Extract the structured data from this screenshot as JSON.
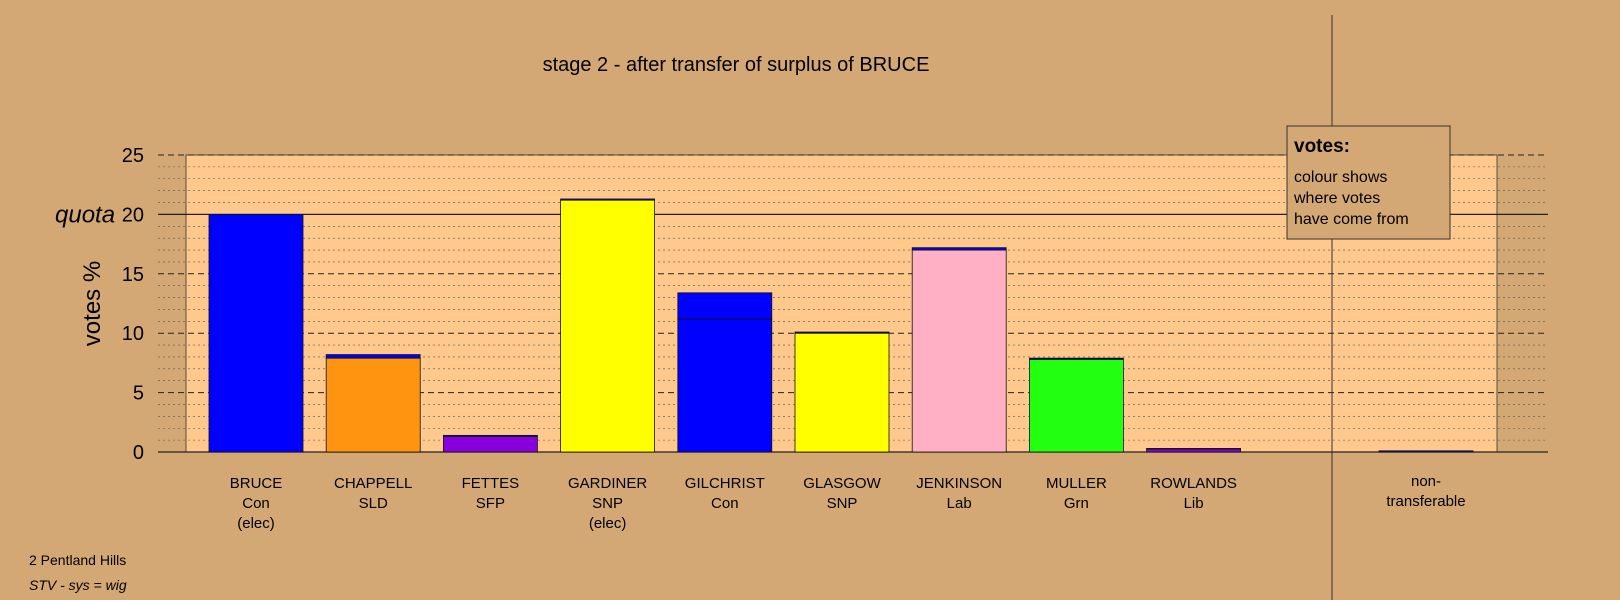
{
  "chart_data": {
    "type": "bar",
    "title": "stage 2 - after transfer of surplus of BRUCE",
    "ylabel": "votes %",
    "ylim": [
      0,
      25
    ],
    "yticks": [
      0,
      5,
      10,
      15,
      20,
      25
    ],
    "quota": {
      "label": "quota",
      "value": 20
    },
    "grid": true,
    "legend": {
      "title": "votes:",
      "lines": [
        "colour shows",
        "where votes",
        "have come from"
      ],
      "position": "top-right"
    },
    "candidates": [
      {
        "name": "BRUCE",
        "party": "Con",
        "status": "(elec)",
        "segments": [
          {
            "value": 20.0,
            "color": "#0000ff"
          }
        ]
      },
      {
        "name": "CHAPPELL",
        "party": "SLD",
        "status": "",
        "segments": [
          {
            "value": 7.9,
            "color": "#ff9410"
          },
          {
            "value": 0.3,
            "color": "#0000ff"
          }
        ]
      },
      {
        "name": "FETTES",
        "party": "SFP",
        "status": "",
        "segments": [
          {
            "value": 1.3,
            "color": "#8800dd"
          },
          {
            "value": 0.1,
            "color": "#0000ff"
          }
        ]
      },
      {
        "name": "GARDINER",
        "party": "SNP",
        "status": "(elec)",
        "segments": [
          {
            "value": 21.2,
            "color": "#ffff00"
          },
          {
            "value": 0.1,
            "color": "#0000ff"
          }
        ]
      },
      {
        "name": "GILCHRIST",
        "party": "Con",
        "status": "",
        "segments": [
          {
            "value": 11.2,
            "color": "#0000ff"
          },
          {
            "value": 2.2,
            "color": "#0000ff"
          }
        ]
      },
      {
        "name": "GLASGOW",
        "party": "SNP",
        "status": "",
        "segments": [
          {
            "value": 10.0,
            "color": "#ffff00"
          },
          {
            "value": 0.1,
            "color": "#0000ff"
          }
        ]
      },
      {
        "name": "JENKINSON",
        "party": "Lab",
        "status": "",
        "segments": [
          {
            "value": 17.0,
            "color": "#ffb0c4"
          },
          {
            "value": 0.2,
            "color": "#0000ff"
          }
        ]
      },
      {
        "name": "MULLER",
        "party": "Grn",
        "status": "",
        "segments": [
          {
            "value": 7.8,
            "color": "#22ff10"
          },
          {
            "value": 0.1,
            "color": "#0000ff"
          }
        ]
      },
      {
        "name": "ROWLANDS",
        "party": "Lib",
        "status": "",
        "segments": [
          {
            "value": 0.25,
            "color": "#8800dd"
          },
          {
            "value": 0.05,
            "color": "#0000ff"
          }
        ]
      }
    ],
    "nontransferable": {
      "label_lines": [
        "non-",
        "transferable"
      ],
      "value": 0.1,
      "color": "#0000ff"
    }
  },
  "footer": {
    "line1": "2 Pentland Hills",
    "line2": "STV - sys = wig"
  },
  "colors": {
    "background": "#d4a874",
    "plot_area": "#ffc88c"
  }
}
